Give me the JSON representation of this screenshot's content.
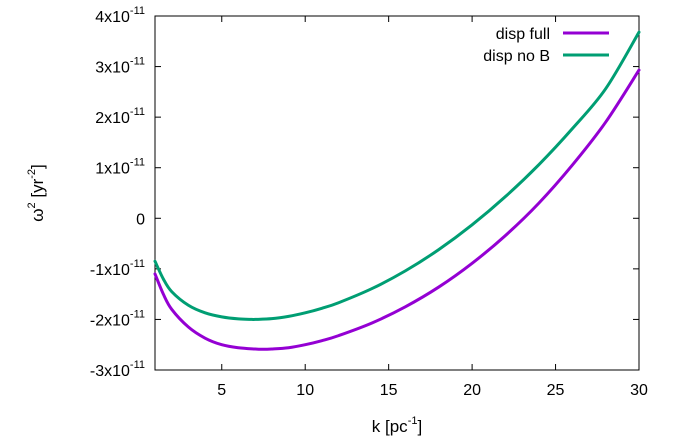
{
  "chart_data": {
    "type": "line",
    "xlabel": "k [pc",
    "xlabel_unit_exponent": "-1",
    "xlabel_close": "]",
    "ylabel_symbol": "ω",
    "ylabel_symbol_exponent": "2",
    "ylabel_unit": " [yr",
    "ylabel_unit_exponent": "-2",
    "ylabel_close": "]",
    "xlim": [
      1,
      30
    ],
    "ylim": [
      -3e-11,
      4e-11
    ],
    "xticks": [
      {
        "value": 5,
        "label": "5"
      },
      {
        "value": 10,
        "label": "10"
      },
      {
        "value": 15,
        "label": "15"
      },
      {
        "value": 20,
        "label": "20"
      },
      {
        "value": 25,
        "label": "25"
      },
      {
        "value": 30,
        "label": "30"
      }
    ],
    "yticks": [
      {
        "value": -3e-11,
        "mantissa": "-3x10",
        "exponent": "-11"
      },
      {
        "value": -2e-11,
        "mantissa": "-2x10",
        "exponent": "-11"
      },
      {
        "value": -1e-11,
        "mantissa": "-1x10",
        "exponent": "-11"
      },
      {
        "value": 0,
        "mantissa": "0",
        "exponent": ""
      },
      {
        "value": 1e-11,
        "mantissa": "1x10",
        "exponent": "-11"
      },
      {
        "value": 2e-11,
        "mantissa": "2x10",
        "exponent": "-11"
      },
      {
        "value": 3e-11,
        "mantissa": "3x10",
        "exponent": "-11"
      },
      {
        "value": 4e-11,
        "mantissa": "4x10",
        "exponent": "-11"
      }
    ],
    "grid": false,
    "legend_position": "top-right",
    "series": [
      {
        "name": "disp full",
        "color": "#9400d3",
        "x": [
          1,
          1.5,
          2,
          3,
          4,
          5,
          6,
          7,
          7.4,
          8,
          9,
          10,
          11,
          12,
          14,
          16,
          18,
          20,
          22,
          24,
          26,
          28,
          30
        ],
        "y": [
          -1.1e-11,
          -1.5e-11,
          -1.8e-11,
          -2.15e-11,
          -2.37e-11,
          -2.5e-11,
          -2.56e-11,
          -2.585e-11,
          -2.59e-11,
          -2.585e-11,
          -2.56e-11,
          -2.5e-11,
          -2.42e-11,
          -2.32e-11,
          -2.07e-11,
          -1.75e-11,
          -1.36e-11,
          -8.9e-12,
          -3.4e-12,
          3e-12,
          1.05e-11,
          1.9e-11,
          2.93e-11
        ]
      },
      {
        "name": "disp no B",
        "color": "#009e73",
        "x": [
          1,
          1.5,
          2,
          3,
          4,
          5,
          6,
          6.8,
          7,
          8,
          9,
          10,
          11,
          12,
          14,
          16,
          18,
          20,
          22,
          24,
          26,
          28,
          30
        ],
        "y": [
          -8.5e-12,
          -1.2e-11,
          -1.45e-11,
          -1.72e-11,
          -1.87e-11,
          -1.95e-11,
          -1.99e-11,
          -2e-11,
          -2e-11,
          -1.985e-11,
          -1.94e-11,
          -1.87e-11,
          -1.78e-11,
          -1.67e-11,
          -1.39e-11,
          -1.04e-11,
          -6.2e-12,
          -1.3e-12,
          4.3e-12,
          1.06e-11,
          1.77e-11,
          2.56e-11,
          3.68e-11
        ]
      }
    ]
  }
}
